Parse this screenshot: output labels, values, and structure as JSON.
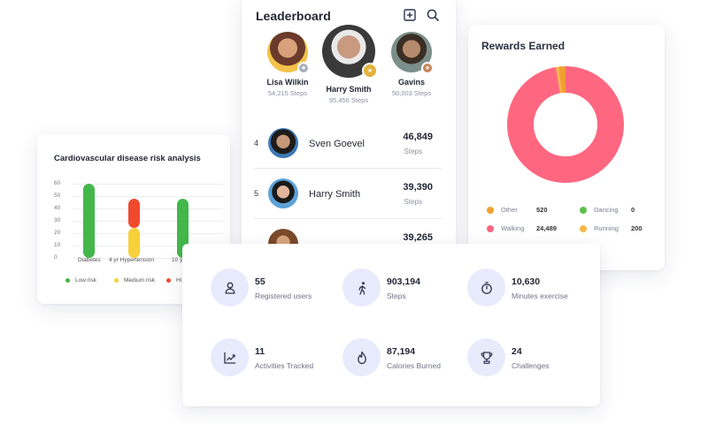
{
  "leaderboard": {
    "title": "Leaderboard",
    "podium": [
      {
        "name": "Lisa Wilkin",
        "steps": "54,215 Steps"
      },
      {
        "name": "Harry Smith",
        "steps": "95,456 Steps"
      },
      {
        "name": "Gavins",
        "steps": "50,003 Steps"
      }
    ],
    "rows": [
      {
        "rank": "4",
        "name": "Sven Goevel",
        "steps": "46,849",
        "steps_label": "Steps"
      },
      {
        "rank": "5",
        "name": "Harry Smith",
        "steps": "39,390",
        "steps_label": "Steps"
      },
      {
        "rank": "",
        "name": "",
        "steps": "39,265",
        "steps_label": ""
      }
    ],
    "icons": [
      "add-square-icon",
      "search-icon"
    ]
  },
  "rewards": {
    "title": "Rewards Earned",
    "legend": [
      {
        "label": "Other",
        "value": "520",
        "color": "#f0a030"
      },
      {
        "label": "Dancing",
        "value": "0",
        "color": "#5cc04d"
      },
      {
        "label": "Walking",
        "value": "24,489",
        "color": "#ff6680"
      },
      {
        "label": "Running",
        "value": "200",
        "color": "#f7b54b"
      }
    ]
  },
  "cardio": {
    "title": "Cardiovascular disease risk analysis",
    "legend": [
      {
        "label": "Low risk",
        "color": "#43b749"
      },
      {
        "label": "Medium risk",
        "color": "#f7d03a"
      },
      {
        "label": "Hi",
        "color": "#f04a2e"
      }
    ]
  },
  "chart_data": [
    {
      "type": "bar",
      "title": "Cardiovascular disease risk analysis",
      "categories": [
        "Diabetes",
        "4 yr Hypertension",
        "10 yr"
      ],
      "yticks": [
        "60",
        "50",
        "40",
        "30",
        "20",
        "10",
        "0"
      ],
      "ylim": [
        0,
        60
      ],
      "series": [
        {
          "name": "Low risk",
          "values": [
            60,
            0,
            48
          ],
          "color": "#43b749"
        },
        {
          "name": "Medium risk",
          "values": [
            0,
            24,
            0
          ],
          "color": "#f7d03a"
        },
        {
          "name": "Hi",
          "values": [
            0,
            24,
            0
          ],
          "color": "#f04a2e"
        }
      ],
      "grid": true,
      "legend": "bottom"
    },
    {
      "type": "pie",
      "title": "Rewards Earned",
      "donut": true,
      "slices": [
        {
          "label": "Walking",
          "value": 24489,
          "color": "#ff6680"
        },
        {
          "label": "Other",
          "value": 520,
          "color": "#f0a030"
        },
        {
          "label": "Running",
          "value": 200,
          "color": "#f7b54b"
        },
        {
          "label": "Dancing",
          "value": 0,
          "color": "#5cc04d"
        }
      ],
      "legend": "bottom"
    }
  ],
  "stats": [
    {
      "value": "55",
      "label": "Registered users",
      "icon": "user-icon"
    },
    {
      "value": "903,194",
      "label": "Steps",
      "icon": "walking-icon"
    },
    {
      "value": "10,630",
      "label": "Minutes exercise",
      "icon": "stopwatch-icon"
    },
    {
      "value": "11",
      "label": "Activities Tracked",
      "icon": "trend-chart-icon"
    },
    {
      "value": "87,194",
      "label": "Calories Burned",
      "icon": "flame-icon"
    },
    {
      "value": "24",
      "label": "Challenges",
      "icon": "trophy-icon"
    }
  ],
  "colors": {
    "accent_bg": "#e8ebfb",
    "icon": "#2d3550",
    "gold": "#e3b23c",
    "silver": "#a9aeb8",
    "bronze": "#c58356"
  }
}
